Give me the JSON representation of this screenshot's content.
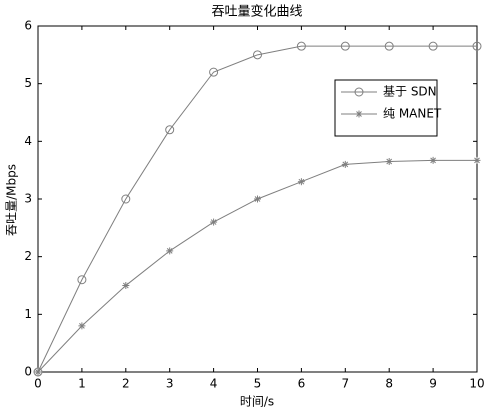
{
  "chart_data": {
    "type": "line",
    "title": "吞吐量变化曲线",
    "x_label": "时间/s",
    "y_label": "吞吐量/Mbps",
    "x": [
      0,
      1,
      2,
      3,
      4,
      5,
      6,
      7,
      8,
      9,
      10
    ],
    "series": [
      {
        "name": "基于 SDN",
        "color": "#7f7f7f",
        "marker": "circle",
        "values": [
          0,
          1.6,
          3.0,
          4.2,
          5.2,
          5.5,
          5.65,
          5.65,
          5.65,
          5.65,
          5.65
        ]
      },
      {
        "name": "纯 MANET",
        "color": "#7f7f7f",
        "marker": "star",
        "values": [
          0,
          0.8,
          1.5,
          2.1,
          2.6,
          3.0,
          3.3,
          3.6,
          3.65,
          3.67,
          3.67
        ]
      }
    ],
    "xlim": [
      0,
      10
    ],
    "xticks": [
      0,
      1,
      2,
      3,
      4,
      5,
      6,
      7,
      8,
      9,
      10
    ],
    "ylim": [
      0,
      6
    ],
    "yticks": [
      0,
      1,
      2,
      3,
      4,
      5,
      6
    ],
    "grid": false,
    "legend": "right"
  }
}
